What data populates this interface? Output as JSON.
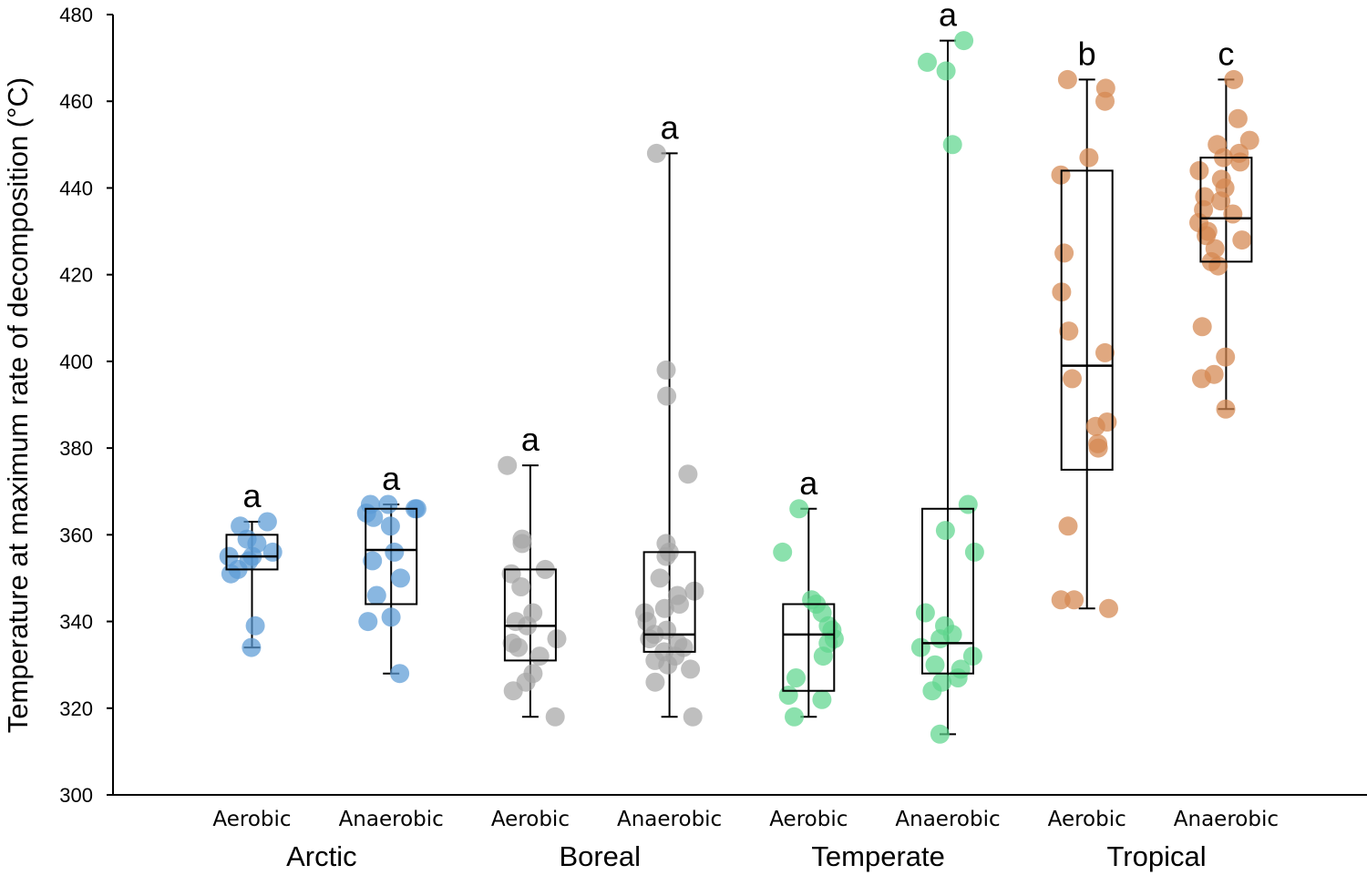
{
  "chart_data": {
    "type": "box",
    "title": "",
    "xlabel": "",
    "ylabel": "Temperature at maximum rate of decomposition (°C)",
    "ylim": [
      300,
      480
    ],
    "yticks": [
      300,
      320,
      340,
      360,
      380,
      400,
      420,
      440,
      460,
      480
    ],
    "grid": false,
    "legend": "none",
    "groups": [
      {
        "biome": "Arctic",
        "color": "#5b9bd5",
        "conditions": [
          {
            "label": "Aerobic",
            "letter": "a",
            "min": 334,
            "q1": 352,
            "median": 355,
            "q3": 360,
            "max": 363,
            "points": [
              334,
              339,
              351,
              352,
              354,
              355,
              355,
              356,
              358,
              359,
              362,
              363
            ]
          },
          {
            "label": "Anaerobic",
            "letter": "a",
            "min": 328,
            "q1": 344,
            "median": 356.5,
            "q3": 366,
            "max": 367,
            "points": [
              328,
              340,
              341,
              346,
              350,
              354,
              356,
              362,
              364,
              365,
              366,
              366,
              367,
              367
            ]
          }
        ]
      },
      {
        "biome": "Boreal",
        "color": "#a6a6a6",
        "conditions": [
          {
            "label": "Aerobic",
            "letter": "a",
            "min": 318,
            "q1": 331,
            "median": 339,
            "q3": 352,
            "max": 376,
            "points": [
              318,
              324,
              326,
              328,
              332,
              334,
              335,
              336,
              339,
              340,
              342,
              348,
              351,
              352,
              358,
              359,
              376
            ]
          },
          {
            "label": "Anaerobic",
            "letter": "a",
            "min": 318,
            "q1": 333,
            "median": 337,
            "q3": 356,
            "max": 448,
            "points": [
              318,
              326,
              329,
              330,
              331,
              332,
              333,
              334,
              335,
              336,
              337,
              338,
              340,
              342,
              343,
              344,
              346,
              347,
              350,
              355,
              356,
              358,
              374,
              392,
              398,
              448
            ]
          }
        ]
      },
      {
        "biome": "Temperate",
        "color": "#5ed68d",
        "conditions": [
          {
            "label": "Aerobic",
            "letter": "a",
            "min": 318,
            "q1": 324,
            "median": 337,
            "q3": 344,
            "max": 366,
            "points": [
              318,
              322,
              323,
              327,
              332,
              335,
              336,
              338,
              339,
              342,
              344,
              345,
              356,
              366
            ]
          },
          {
            "label": "Anaerobic",
            "letter": "a",
            "min": 314,
            "q1": 328,
            "median": 335,
            "q3": 366,
            "max": 474,
            "points": [
              314,
              324,
              326,
              327,
              329,
              330,
              332,
              334,
              336,
              337,
              339,
              342,
              356,
              361,
              367,
              450,
              467,
              469,
              474
            ]
          }
        ]
      },
      {
        "biome": "Tropical",
        "color": "#d4874f",
        "conditions": [
          {
            "label": "Aerobic",
            "letter": "b",
            "min": 343,
            "q1": 375,
            "median": 399,
            "q3": 444,
            "max": 465,
            "points": [
              343,
              345,
              345,
              362,
              380,
              381,
              385,
              386,
              396,
              402,
              407,
              416,
              425,
              443,
              447,
              460,
              463,
              465
            ]
          },
          {
            "label": "Anaerobic",
            "letter": "c",
            "min": 389,
            "q1": 423,
            "median": 433,
            "q3": 447,
            "max": 465,
            "points": [
              389,
              396,
              397,
              401,
              408,
              422,
              423,
              426,
              428,
              429,
              430,
              432,
              434,
              435,
              437,
              438,
              440,
              442,
              444,
              446,
              447,
              448,
              450,
              451,
              456,
              465
            ]
          }
        ]
      }
    ]
  }
}
